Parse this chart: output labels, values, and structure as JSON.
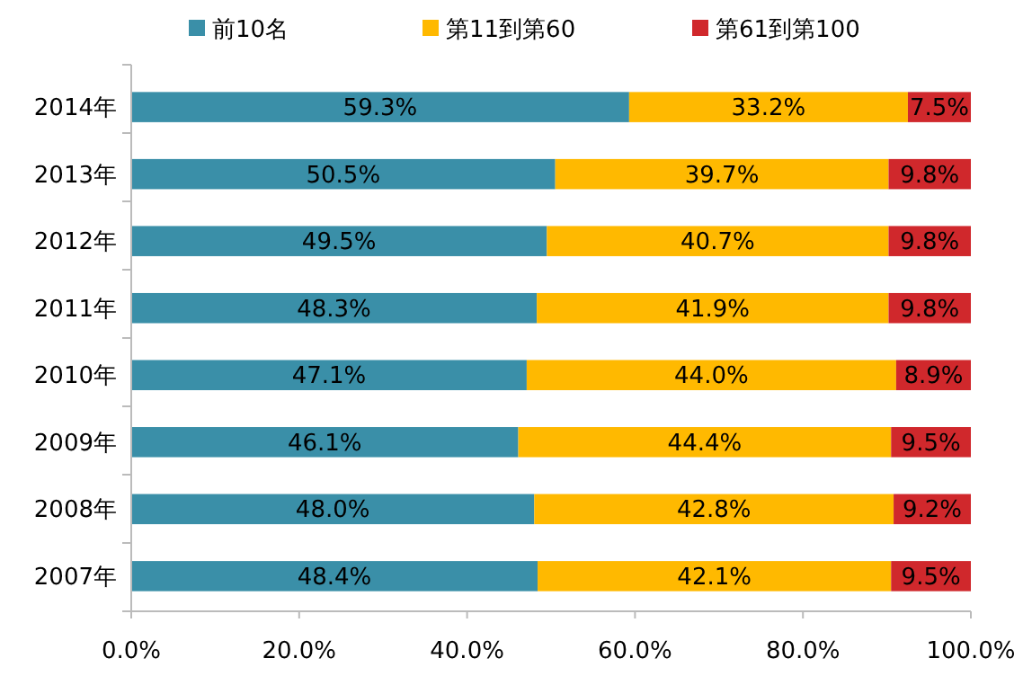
{
  "chart_data": {
    "type": "bar",
    "orientation": "horizontal",
    "stacked": true,
    "categories": [
      "2014年",
      "2013年",
      "2012年",
      "2011年",
      "2010年",
      "2009年",
      "2008年",
      "2007年"
    ],
    "series": [
      {
        "name": "前10名",
        "color": "#3a8fa8",
        "values": [
          59.3,
          50.5,
          49.5,
          48.3,
          47.1,
          46.1,
          48.0,
          48.4
        ],
        "value_labels": [
          "59.3%",
          "50.5%",
          "49.5%",
          "48.3%",
          "47.1%",
          "46.1%",
          "48.0%",
          "48.4%"
        ]
      },
      {
        "name": "第11到第60",
        "color": "#ffb900",
        "values": [
          33.2,
          39.7,
          40.7,
          41.9,
          44.0,
          44.4,
          42.8,
          42.1
        ],
        "value_labels": [
          "33.2%",
          "39.7%",
          "40.7%",
          "41.9%",
          "44.0%",
          "44.4%",
          "42.8%",
          "42.1%"
        ]
      },
      {
        "name": "第61到第100",
        "color": "#d0282c",
        "values": [
          7.5,
          9.8,
          9.8,
          9.8,
          8.9,
          9.5,
          9.2,
          9.5
        ],
        "value_labels": [
          "7.5%",
          "9.8%",
          "9.8%",
          "9.8%",
          "8.9%",
          "9.5%",
          "9.2%",
          "9.5%"
        ]
      }
    ],
    "xlim": [
      0,
      100
    ],
    "xticks": [
      {
        "value": 0,
        "label": "0.0%"
      },
      {
        "value": 20,
        "label": "20.0%"
      },
      {
        "value": 40,
        "label": "40.0%"
      },
      {
        "value": 60,
        "label": "60.0%"
      },
      {
        "value": 80,
        "label": "80.0%"
      },
      {
        "value": 100,
        "label": "100.0%"
      }
    ],
    "grid": false,
    "legend": "top"
  }
}
